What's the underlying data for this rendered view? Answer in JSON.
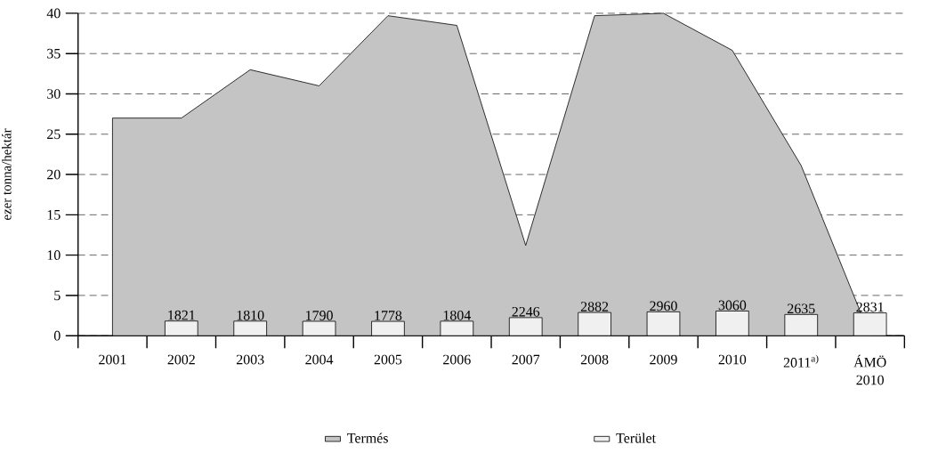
{
  "chart_data": {
    "type": "area",
    "ylabel": "ezer tonna/hektár",
    "categories": [
      "2001",
      "2002",
      "2003",
      "2004",
      "2005",
      "2006",
      "2007",
      "2008",
      "2009",
      "2010",
      "2011$^{a)}$",
      "ÁMÖ 2010"
    ],
    "series": [
      {
        "name": "Termés",
        "color": "#c4c4c4",
        "values": [
          27,
          27,
          33,
          31,
          39.7,
          38.5,
          11.2,
          39.7,
          40,
          35.4,
          21.1,
          0
        ]
      },
      {
        "name": "Terület",
        "type": "bar",
        "axis": "y2",
        "color": "#f0f0f0",
        "values": [
          null,
          1821,
          1810,
          1790,
          1778,
          1804,
          2246,
          2882,
          2960,
          3060,
          2635,
          2831
        ],
        "value_labels": [
          null,
          "1821",
          "1810",
          "1790",
          "1778",
          "1804",
          "2246",
          "2882",
          "2960",
          "3060",
          "2635",
          "2831"
        ]
      }
    ],
    "ylim": [
      0,
      40
    ],
    "yticks": [
      0,
      5,
      10,
      15,
      20,
      25,
      30,
      35,
      40
    ],
    "y2lim": [
      0,
      40000
    ],
    "grid": "y",
    "legend": "bottom"
  }
}
